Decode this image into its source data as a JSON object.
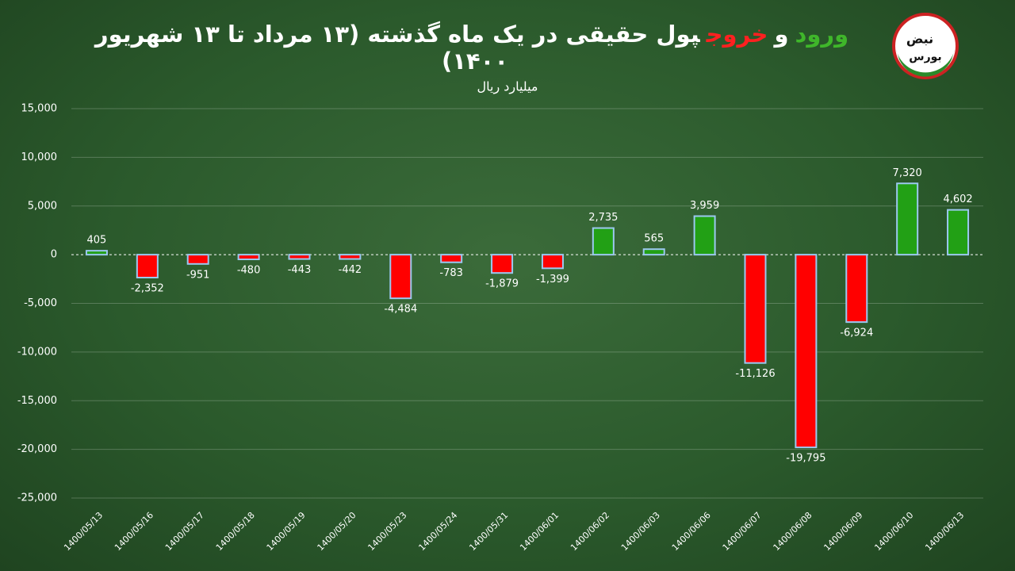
{
  "chart_data": {
    "type": "bar",
    "title": [
      {
        "text": "ورود",
        "color": "#3fb62a"
      },
      {
        "text": "و",
        "color": "#ffffff"
      },
      {
        "text": "خروج",
        "color": "#ff2020"
      },
      {
        "text": "پول حقیقی در یک ماه گذشته (۱۳ مرداد تا ۱۳ شهریور ۱۴۰۰)",
        "color": "#ffffff"
      }
    ],
    "subtitle": "میلیارد ریال",
    "logo": [
      "نبض",
      "بورس"
    ],
    "categories": [
      "1400/05/13",
      "1400/05/16",
      "1400/05/17",
      "1400/05/18",
      "1400/05/19",
      "1400/05/20",
      "1400/05/23",
      "1400/05/24",
      "1400/05/31",
      "1400/06/01",
      "1400/06/02",
      "1400/06/03",
      "1400/06/06",
      "1400/06/07",
      "1400/06/08",
      "1400/06/09",
      "1400/06/10",
      "1400/06/13"
    ],
    "values": [
      405,
      -2352,
      -951,
      -480,
      -443,
      -442,
      -4484,
      -783,
      -1879,
      -1399,
      2735,
      565,
      3959,
      -11126,
      -19795,
      -6924,
      7320,
      4602
    ],
    "value_labels": [
      "405",
      "-2,352",
      "-951",
      "-480",
      "-443",
      "-442",
      "-4,484",
      "-783",
      "-1,879",
      "-1,399",
      "2,735",
      "565",
      "3,959",
      "-11,126",
      "-19,795",
      "-6,924",
      "7,320",
      "4,602"
    ],
    "positive_color": "#22a015",
    "negative_color": "#ff0000",
    "border_color": "#9cc8f0",
    "ylim": [
      -25000,
      15000
    ],
    "yticks": [
      {
        "value": -25000,
        "label": "-25,000"
      },
      {
        "value": -20000,
        "label": "-20,000"
      },
      {
        "value": -15000,
        "label": "-15,000"
      },
      {
        "value": -10000,
        "label": "-10,000"
      },
      {
        "value": -5000,
        "label": "-5,000"
      },
      0,
      {
        "value": 5000,
        "label": "5,000"
      },
      {
        "value": 10000,
        "label": "10,000"
      },
      {
        "value": 15000,
        "label": "15,000"
      }
    ],
    "grid": true
  }
}
